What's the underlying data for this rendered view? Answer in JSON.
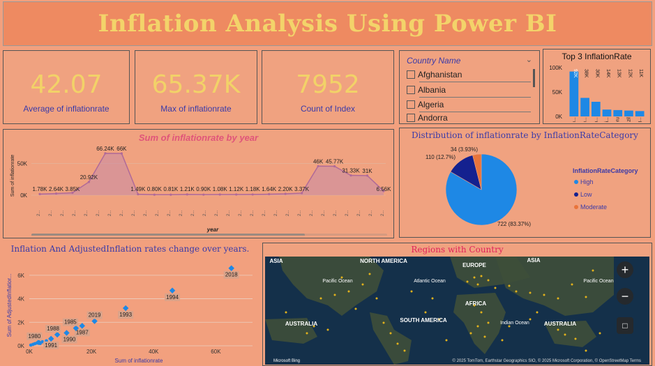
{
  "title": "Inflation Analysis Using Power BI",
  "cards": [
    {
      "value": "42.07",
      "label": "Average of inflationrate"
    },
    {
      "value": "65.37K",
      "label": "Max of inflationrate"
    },
    {
      "value": "7952",
      "label": "Count of Index"
    }
  ],
  "slicer": {
    "header": "Country Name",
    "items": [
      "Afghanistan",
      "Albania",
      "Algeria",
      "Andorra"
    ]
  },
  "top3": {
    "title": "Top 3 InflationRate",
    "chart_data": {
      "type": "bar",
      "categories": [
        "Ven...",
        "Con...",
        "Nica...",
        "Boli...",
        "Peru",
        "Brazil",
        "Arg..."
      ],
      "values": [
        92000,
        38000,
        30000,
        14000,
        13000,
        12000,
        11000
      ],
      "data_labels": [
        "92K",
        "38K",
        "30K",
        "14K",
        "13K",
        "12K",
        "11K"
      ],
      "y_ticks": [
        "100K",
        "50K",
        "0K"
      ],
      "ylim": [
        0,
        100000
      ]
    }
  },
  "line": {
    "title": "Sum of inflationrate by year",
    "xlabel": "year",
    "ylabel": "Sum of inflationrate",
    "y_ticks": [
      "50K",
      "0K"
    ],
    "chart_data": {
      "type": "line",
      "values": [
        1780,
        2640,
        3850,
        20920,
        66240,
        66000,
        1490,
        800,
        810,
        1210,
        900,
        1080,
        1120,
        1180,
        1640,
        2200,
        3370,
        46000,
        45770,
        31330,
        31000,
        6560
      ],
      "labels": [
        "1.78K",
        "2.64K",
        "3.85K",
        "20.92K",
        "66.24K",
        "66K",
        "1.49K",
        "0.80K",
        "0.81K",
        "1.21K",
        "0.90K",
        "1.08K",
        "1.12K",
        "1.18K",
        "1.64K",
        "2.20K",
        "3.37K",
        "46K",
        "45.77K",
        "31.33K",
        "31K",
        "6.56K"
      ],
      "ylim": [
        0,
        75000
      ]
    }
  },
  "pie": {
    "title": "Distribution of inflationrate by InflationRateCategory",
    "legend_title": "InflationRateCategory",
    "chart_data": {
      "type": "pie",
      "slices": [
        {
          "name": "High",
          "value": 722,
          "label": "722 (83.37%)",
          "color": "#1e88e5"
        },
        {
          "name": "Low",
          "value": 110,
          "label": "110 (12.7%)",
          "color": "#14218f"
        },
        {
          "name": "Moderate",
          "value": 34,
          "label": "34 (3.93%)",
          "color": "#e8743b"
        }
      ]
    }
  },
  "scatter": {
    "title": "Inflation And AdjustedInflation rates change over years.",
    "xlabel": "Sum of inflationrate",
    "ylabel": "Sum of AdjustedInflatior...",
    "x_ticks": [
      "0K",
      "20K",
      "40K",
      "60K"
    ],
    "y_ticks": [
      "0K",
      "2K",
      "4K",
      "6K"
    ],
    "chart_data": {
      "type": "scatter",
      "points": [
        {
          "label": "2018",
          "x": 65000,
          "y": 6600
        },
        {
          "label": "1994",
          "x": 46000,
          "y": 4700
        },
        {
          "label": "1993",
          "x": 31000,
          "y": 3200
        },
        {
          "label": "2019",
          "x": 21000,
          "y": 2100
        },
        {
          "label": "1987",
          "x": 17000,
          "y": 1700
        },
        {
          "label": "1985",
          "x": 15000,
          "y": 1500
        },
        {
          "label": "1990",
          "x": 12000,
          "y": 1100
        },
        {
          "label": "1988",
          "x": 9000,
          "y": 950
        },
        {
          "label": "1991",
          "x": 7000,
          "y": 600
        },
        {
          "label": "1980",
          "x": 3000,
          "y": 300
        }
      ],
      "xlim": [
        0,
        70000
      ],
      "ylim": [
        0,
        7000
      ]
    }
  },
  "map": {
    "title": "Regions with Country",
    "labels": [
      "NORTH AMERICA",
      "EUROPE",
      "ASIA",
      "ASIA",
      "Pacific Ocean",
      "Atlantic Ocean",
      "AFRICA",
      "Pacific Ocean",
      "SOUTH AMERICA",
      "Indian Ocean",
      "AUSTRALIA",
      "AUSTRALIA"
    ],
    "attribution": "© 2025 TomTom, Earthstar Geographics SIO, © 2025 Microsoft Corporation, © OpenStreetMap  Terms",
    "bing": "Microsoft Bing",
    "zoom_in": "+",
    "zoom_out": "−"
  }
}
